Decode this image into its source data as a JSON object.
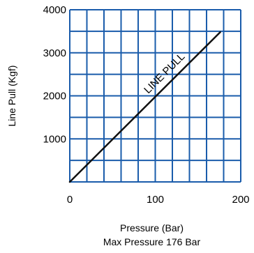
{
  "chart_data": {
    "type": "line",
    "title": "",
    "xlabel": "Pressure (Bar)",
    "ylabel": "Line Pull (Kgf)",
    "subtitle": "Max Pressure 176 Bar",
    "xlim": [
      0,
      200
    ],
    "ylim": [
      0,
      4000
    ],
    "x_ticks": [
      0,
      100,
      200
    ],
    "x_tick_labels": [
      "0",
      "100",
      "200"
    ],
    "y_ticks": [
      1000,
      2000,
      3000,
      4000
    ],
    "y_tick_labels": [
      "1000",
      "2000",
      "3000",
      "4000"
    ],
    "x_grid_step": 20,
    "y_grid_step": 500,
    "grid": true,
    "grid_color": "#1a5cab",
    "line_color": "#111111",
    "series": [
      {
        "x": [
          0,
          176
        ],
        "y": [
          0,
          3480
        ]
      }
    ],
    "annotation": "LINE PULL"
  }
}
